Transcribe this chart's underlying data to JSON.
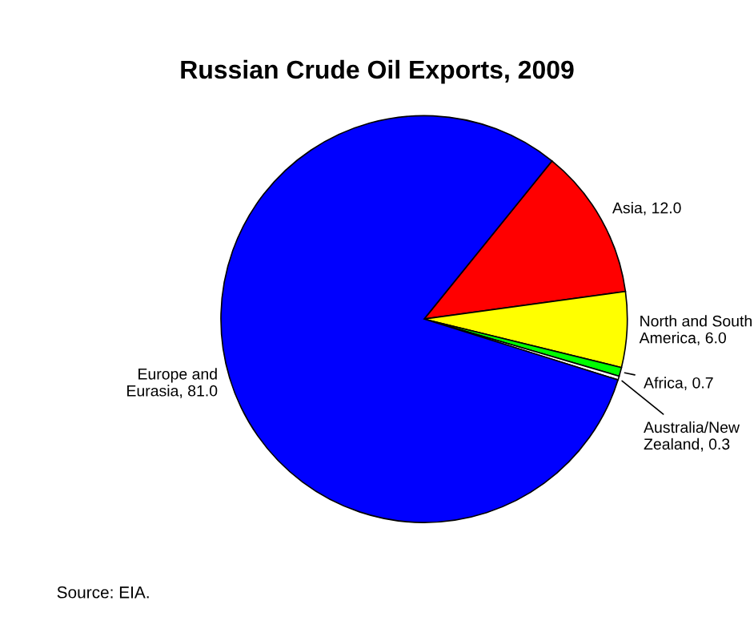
{
  "chart_data": {
    "type": "pie",
    "title": "Russian Crude Oil Exports, 2009",
    "categories": [
      "Asia",
      "North and South\nAmerica",
      "Africa",
      "Australia/New\nZealand",
      "Europe and\nEurasia"
    ],
    "values": [
      12.0,
      6.0,
      0.7,
      0.3,
      81.0
    ],
    "value_labels": [
      "12.0",
      "6.0",
      "0.7",
      "0.3",
      "81.0"
    ],
    "colors": [
      "#ff0000",
      "#ffff00",
      "#00ff00",
      "#ffffff",
      "#0000ff"
    ],
    "annotations": [
      "Source: EIA."
    ]
  }
}
